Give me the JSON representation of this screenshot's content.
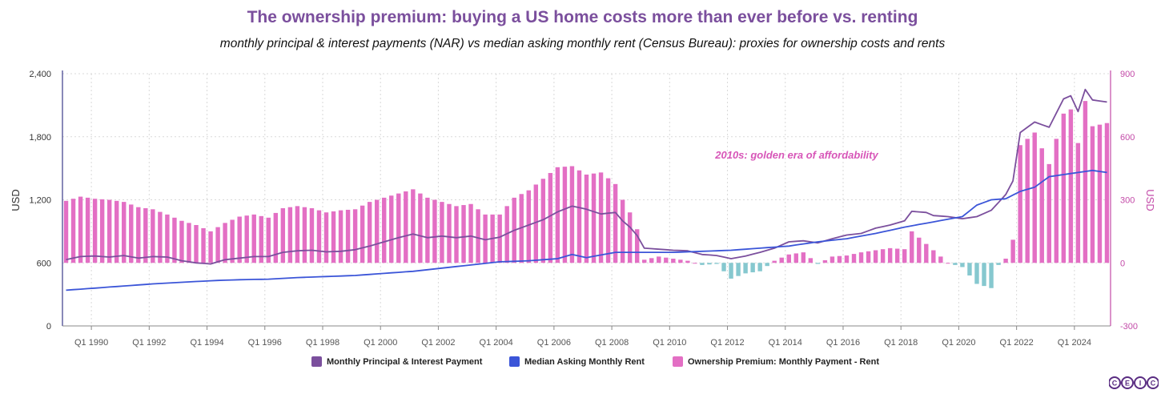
{
  "colors": {
    "payment": "#7b4f9d",
    "rent": "#3b55d8",
    "premium_pos": "#e36fc4",
    "premium_neg": "#86c8cf",
    "right_axis": "#c34aa8",
    "annotation": "#d756b8",
    "logo": "#5a2d82"
  },
  "logo": {
    "letters": [
      "C",
      "E",
      "I",
      "C"
    ]
  },
  "chart_data": {
    "type": "bar+line",
    "title": "The ownership premium: buying a US home costs more than ever before vs. renting",
    "subtitle": "monthly principal & interest payments (NAR) vs median asking monthly rent (Census Bureau): proxies for ownership costs and rents",
    "ylabel_left": "USD",
    "ylabel_right": "USD",
    "ylim_left": [
      0,
      2400
    ],
    "ylim_right": [
      -300,
      900
    ],
    "yticks_left": [
      "0",
      "600",
      "1,200",
      "1,800",
      "2,400"
    ],
    "yticks_right": [
      "-300",
      "0",
      "300",
      "600",
      "900"
    ],
    "xticks": [
      "Q1 1990",
      "Q1 1992",
      "Q1 1994",
      "Q1 1996",
      "Q1 1998",
      "Q1 2000",
      "Q1 2002",
      "Q1 2004",
      "Q1 2006",
      "Q1 2008",
      "Q1 2010",
      "Q1 2012",
      "Q1 2014",
      "Q1 2016",
      "Q1 2018",
      "Q1 2020",
      "Q1 2022",
      "Q1 2024"
    ],
    "grid": true,
    "legend_position": "bottom",
    "annotation": "2010s: golden era of affordability",
    "series": [
      {
        "name": "Monthly Principal & Interest Payment",
        "type": "line",
        "axis": "left",
        "anchors": [
          [
            1989.0,
            630
          ],
          [
            1989.5,
            660
          ],
          [
            1990.0,
            665
          ],
          [
            1990.5,
            655
          ],
          [
            1991.0,
            670
          ],
          [
            1991.5,
            645
          ],
          [
            1992.0,
            660
          ],
          [
            1992.5,
            655
          ],
          [
            1993.0,
            620
          ],
          [
            1993.5,
            600
          ],
          [
            1994.0,
            590
          ],
          [
            1994.5,
            630
          ],
          [
            1995.0,
            645
          ],
          [
            1995.5,
            660
          ],
          [
            1996.0,
            660
          ],
          [
            1996.5,
            700
          ],
          [
            1997.0,
            715
          ],
          [
            1997.5,
            720
          ],
          [
            1998.0,
            705
          ],
          [
            1998.5,
            710
          ],
          [
            1999.0,
            725
          ],
          [
            1999.5,
            760
          ],
          [
            2000.0,
            800
          ],
          [
            2000.5,
            840
          ],
          [
            2001.0,
            875
          ],
          [
            2001.5,
            840
          ],
          [
            2002.0,
            855
          ],
          [
            2002.5,
            840
          ],
          [
            2003.0,
            855
          ],
          [
            2003.5,
            820
          ],
          [
            2004.0,
            845
          ],
          [
            2004.5,
            910
          ],
          [
            2005.0,
            960
          ],
          [
            2005.5,
            1010
          ],
          [
            2006.0,
            1085
          ],
          [
            2006.5,
            1140
          ],
          [
            2007.0,
            1110
          ],
          [
            2007.5,
            1065
          ],
          [
            2008.0,
            1080
          ],
          [
            2008.25,
            1000
          ],
          [
            2008.5,
            940
          ],
          [
            2008.75,
            860
          ],
          [
            2009.0,
            740
          ],
          [
            2009.5,
            730
          ],
          [
            2010.0,
            720
          ],
          [
            2010.5,
            715
          ],
          [
            2011.0,
            680
          ],
          [
            2011.5,
            670
          ],
          [
            2012.0,
            640
          ],
          [
            2012.5,
            665
          ],
          [
            2013.0,
            700
          ],
          [
            2013.5,
            740
          ],
          [
            2014.0,
            800
          ],
          [
            2014.5,
            810
          ],
          [
            2015.0,
            790
          ],
          [
            2015.5,
            830
          ],
          [
            2016.0,
            865
          ],
          [
            2016.5,
            880
          ],
          [
            2017.0,
            930
          ],
          [
            2017.5,
            960
          ],
          [
            2018.0,
            1000
          ],
          [
            2018.25,
            1090
          ],
          [
            2018.75,
            1080
          ],
          [
            2019.0,
            1050
          ],
          [
            2019.5,
            1040
          ],
          [
            2020.0,
            1020
          ],
          [
            2020.5,
            1040
          ],
          [
            2021.0,
            1100
          ],
          [
            2021.5,
            1250
          ],
          [
            2021.75,
            1380
          ],
          [
            2022.0,
            1840
          ],
          [
            2022.5,
            1940
          ],
          [
            2023.0,
            1890
          ],
          [
            2023.5,
            2160
          ],
          [
            2023.75,
            2190
          ],
          [
            2024.0,
            2040
          ],
          [
            2024.25,
            2250
          ],
          [
            2024.5,
            2150
          ],
          [
            2025.0,
            2130
          ]
        ]
      },
      {
        "name": "Median Asking Monthly Rent",
        "type": "line",
        "axis": "left",
        "anchors": [
          [
            1989.0,
            340
          ],
          [
            1990.0,
            360
          ],
          [
            1991.0,
            380
          ],
          [
            1992.0,
            400
          ],
          [
            1993.0,
            415
          ],
          [
            1994.0,
            430
          ],
          [
            1995.0,
            440
          ],
          [
            1996.0,
            445
          ],
          [
            1997.0,
            460
          ],
          [
            1998.0,
            470
          ],
          [
            1999.0,
            480
          ],
          [
            2000.0,
            500
          ],
          [
            2001.0,
            520
          ],
          [
            2002.0,
            550
          ],
          [
            2003.0,
            580
          ],
          [
            2004.0,
            610
          ],
          [
            2005.0,
            620
          ],
          [
            2006.0,
            640
          ],
          [
            2006.5,
            680
          ],
          [
            2007.0,
            650
          ],
          [
            2008.0,
            700
          ],
          [
            2009.0,
            700
          ],
          [
            2010.0,
            700
          ],
          [
            2011.0,
            710
          ],
          [
            2012.0,
            720
          ],
          [
            2013.0,
            740
          ],
          [
            2014.0,
            760
          ],
          [
            2015.0,
            800
          ],
          [
            2016.0,
            830
          ],
          [
            2017.0,
            880
          ],
          [
            2018.0,
            940
          ],
          [
            2019.0,
            990
          ],
          [
            2020.0,
            1040
          ],
          [
            2020.5,
            1150
          ],
          [
            2021.0,
            1200
          ],
          [
            2021.5,
            1210
          ],
          [
            2022.0,
            1280
          ],
          [
            2022.5,
            1320
          ],
          [
            2023.0,
            1420
          ],
          [
            2023.5,
            1440
          ],
          [
            2024.0,
            1460
          ],
          [
            2024.5,
            1480
          ],
          [
            2025.0,
            1460
          ]
        ]
      },
      {
        "name": "Ownership Premium: Monthly Payment - Rent",
        "type": "bar",
        "axis": "right",
        "anchors": [
          [
            1989.0,
            295
          ],
          [
            1989.5,
            315
          ],
          [
            1990.0,
            305
          ],
          [
            1990.5,
            300
          ],
          [
            1991.0,
            290
          ],
          [
            1991.5,
            265
          ],
          [
            1992.0,
            255
          ],
          [
            1992.5,
            230
          ],
          [
            1993.0,
            200
          ],
          [
            1993.5,
            180
          ],
          [
            1994.0,
            150
          ],
          [
            1994.5,
            190
          ],
          [
            1995.0,
            220
          ],
          [
            1995.5,
            230
          ],
          [
            1996.0,
            215
          ],
          [
            1996.5,
            260
          ],
          [
            1997.0,
            270
          ],
          [
            1997.5,
            260
          ],
          [
            1998.0,
            240
          ],
          [
            1998.5,
            250
          ],
          [
            1999.0,
            255
          ],
          [
            1999.5,
            290
          ],
          [
            2000.0,
            310
          ],
          [
            2000.5,
            330
          ],
          [
            2001.0,
            350
          ],
          [
            2001.5,
            310
          ],
          [
            2002.0,
            290
          ],
          [
            2002.5,
            270
          ],
          [
            2003.0,
            280
          ],
          [
            2003.5,
            230
          ],
          [
            2004.0,
            230
          ],
          [
            2004.5,
            310
          ],
          [
            2005.0,
            345
          ],
          [
            2005.5,
            400
          ],
          [
            2006.0,
            455
          ],
          [
            2006.5,
            460
          ],
          [
            2007.0,
            420
          ],
          [
            2007.5,
            430
          ],
          [
            2008.0,
            375
          ],
          [
            2008.25,
            300
          ],
          [
            2008.5,
            240
          ],
          [
            2008.75,
            160
          ],
          [
            2009.0,
            15
          ],
          [
            2009.5,
            30
          ],
          [
            2010.0,
            20
          ],
          [
            2010.5,
            10
          ],
          [
            2011.0,
            -10
          ],
          [
            2011.5,
            -5
          ],
          [
            2012.0,
            -75
          ],
          [
            2012.5,
            -50
          ],
          [
            2013.0,
            -40
          ],
          [
            2013.5,
            10
          ],
          [
            2014.0,
            40
          ],
          [
            2014.5,
            50
          ],
          [
            2015.0,
            -5
          ],
          [
            2015.5,
            30
          ],
          [
            2016.0,
            35
          ],
          [
            2016.5,
            50
          ],
          [
            2017.0,
            60
          ],
          [
            2017.5,
            70
          ],
          [
            2018.0,
            65
          ],
          [
            2018.25,
            150
          ],
          [
            2018.75,
            90
          ],
          [
            2019.0,
            60
          ],
          [
            2019.5,
            0
          ],
          [
            2020.0,
            -20
          ],
          [
            2020.5,
            -100
          ],
          [
            2021.0,
            -120
          ],
          [
            2021.25,
            -10
          ],
          [
            2021.5,
            20
          ],
          [
            2021.75,
            110
          ],
          [
            2022.0,
            560
          ],
          [
            2022.5,
            620
          ],
          [
            2023.0,
            470
          ],
          [
            2023.5,
            710
          ],
          [
            2023.75,
            730
          ],
          [
            2024.0,
            570
          ],
          [
            2024.25,
            770
          ],
          [
            2024.5,
            650
          ],
          [
            2025.0,
            665
          ]
        ]
      }
    ]
  }
}
